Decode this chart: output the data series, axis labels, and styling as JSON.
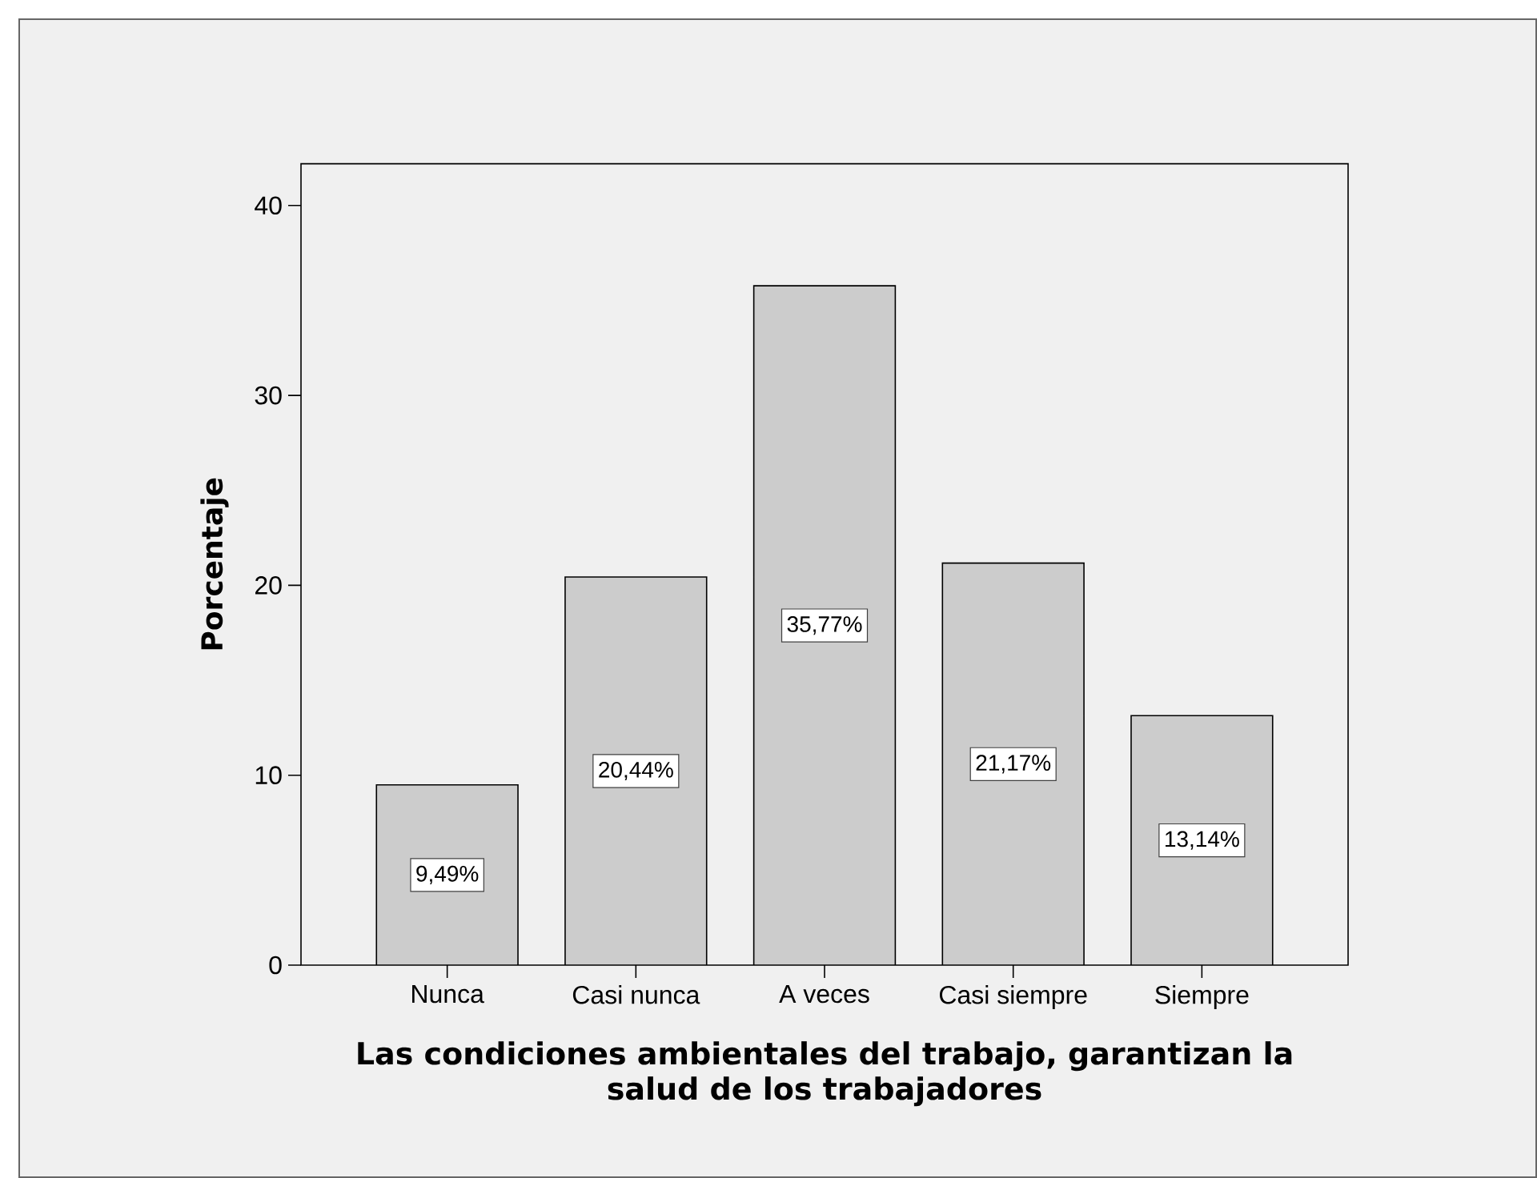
{
  "chart_data": {
    "type": "bar",
    "xlabel": "Las condiciones ambientales del trabajo, garantizan la salud de los trabajadores",
    "ylabel": "Porcentaje",
    "categories": [
      "Nunca",
      "Casi nunca",
      "A veces",
      "Casi siempre",
      "Siempre"
    ],
    "values": [
      9.49,
      20.44,
      35.77,
      21.17,
      13.14
    ],
    "value_labels": [
      "9,49%",
      "20,44%",
      "35,77%",
      "21,17%",
      "13,14%"
    ],
    "color": "#cccccc",
    "ylim": [
      0,
      42.2
    ],
    "yticks": [
      0,
      10,
      20,
      30,
      40
    ]
  }
}
